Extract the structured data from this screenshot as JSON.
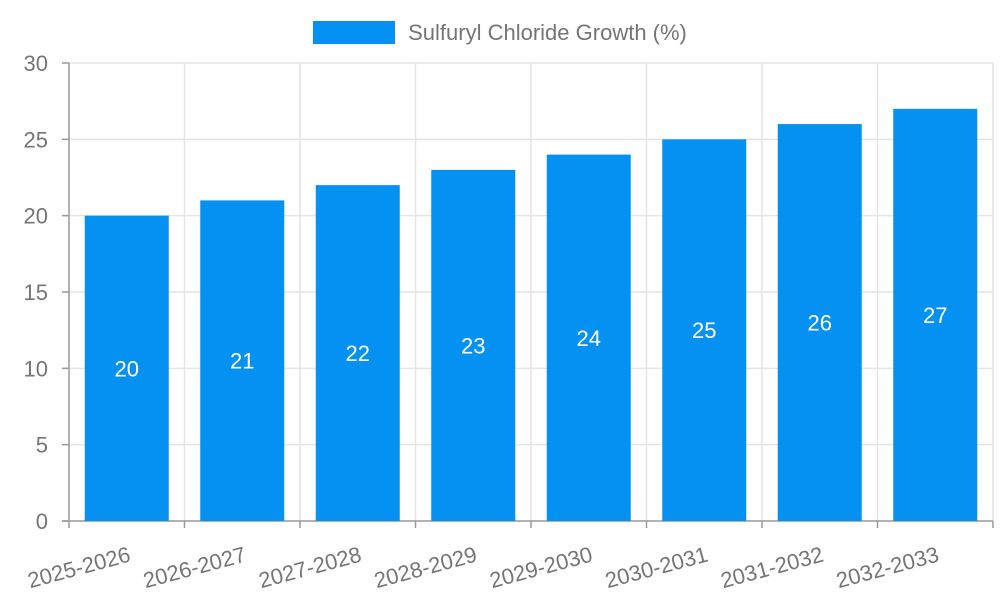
{
  "legend": {
    "label": "Sulfuryl Chloride Growth (%)"
  },
  "chart_data": {
    "type": "bar",
    "title": "",
    "xlabel": "",
    "ylabel": "",
    "series_name": "Sulfuryl Chloride Growth (%)",
    "categories": [
      "2025-2026",
      "2026-2027",
      "2027-2028",
      "2028-2029",
      "2029-2030",
      "2030-2031",
      "2031-2032",
      "2032-2033"
    ],
    "values": [
      20,
      21,
      22,
      23,
      24,
      25,
      26,
      27
    ],
    "ylim": [
      0,
      30
    ],
    "yticks": [
      0,
      5,
      10,
      15,
      20,
      25,
      30
    ],
    "grid": true,
    "data_labels": true,
    "legend_position": "top-center",
    "x_label_rotation_deg": -15,
    "colors": {
      "bar": "#0591f2",
      "axis": "#999999",
      "grid": "#e4e4e4",
      "tick_text": "#757575",
      "bar_label": "#ffffff",
      "background": "#ffffff"
    }
  }
}
